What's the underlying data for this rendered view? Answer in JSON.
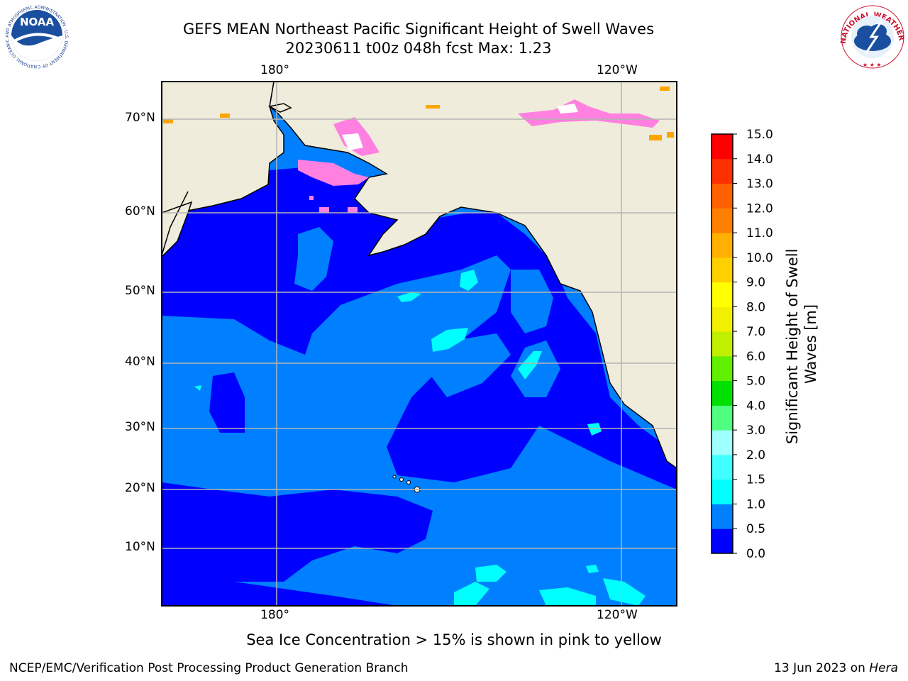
{
  "header": {
    "title_line1": "GEFS MEAN Northeast Pacific Significant Height of Swell Waves",
    "title_line2": "20230611 t00z 048h fcst   Max: 1.23",
    "noaa_logo_text": "NOAA",
    "noaa_ring_text": "NATIONAL OCEANIC AND ATMOSPHERIC ADMINISTRATION · U.S. DEPARTMENT OF COMMERCE",
    "nws_ring_text": "NATIONAL WEATHER SERVICE"
  },
  "map": {
    "lon_labels_top": [
      "180°",
      "120°W"
    ],
    "lon_labels_bottom": [
      "180°",
      "120°W"
    ],
    "lat_labels": [
      "70°N",
      "60°N",
      "50°N",
      "40°N",
      "30°N",
      "20°N",
      "10°N"
    ],
    "colors": {
      "land": "#efecdc",
      "ice_pink": "#ff80e0",
      "ice_orange": "#ffa500",
      "grid": "#b4b4b4"
    }
  },
  "colorbar": {
    "label": "Significant Height of Swell Waves [m]",
    "ticks": [
      "0.0",
      "0.5",
      "1.0",
      "1.5",
      "2.0",
      "3.0",
      "4.0",
      "5.0",
      "6.0",
      "7.0",
      "8.0",
      "9.0",
      "10.0",
      "11.0",
      "12.0",
      "13.0",
      "14.0",
      "15.0"
    ],
    "colors": [
      "#0000ff",
      "#0080ff",
      "#00ffff",
      "#40ffff",
      "#a0ffff",
      "#50ff80",
      "#00e000",
      "#60f000",
      "#c0f000",
      "#f0f000",
      "#ffff00",
      "#ffd000",
      "#ffb000",
      "#ff8000",
      "#ff6000",
      "#ff3000",
      "#ff0000"
    ]
  },
  "note": "Sea Ice Concentration > 15% is shown in pink to yellow",
  "footer": {
    "left": "NCEP/EMC/Verification Post Processing Product Generation Branch",
    "right_date": "13 Jun 2023 on ",
    "right_machine": "Hera"
  }
}
